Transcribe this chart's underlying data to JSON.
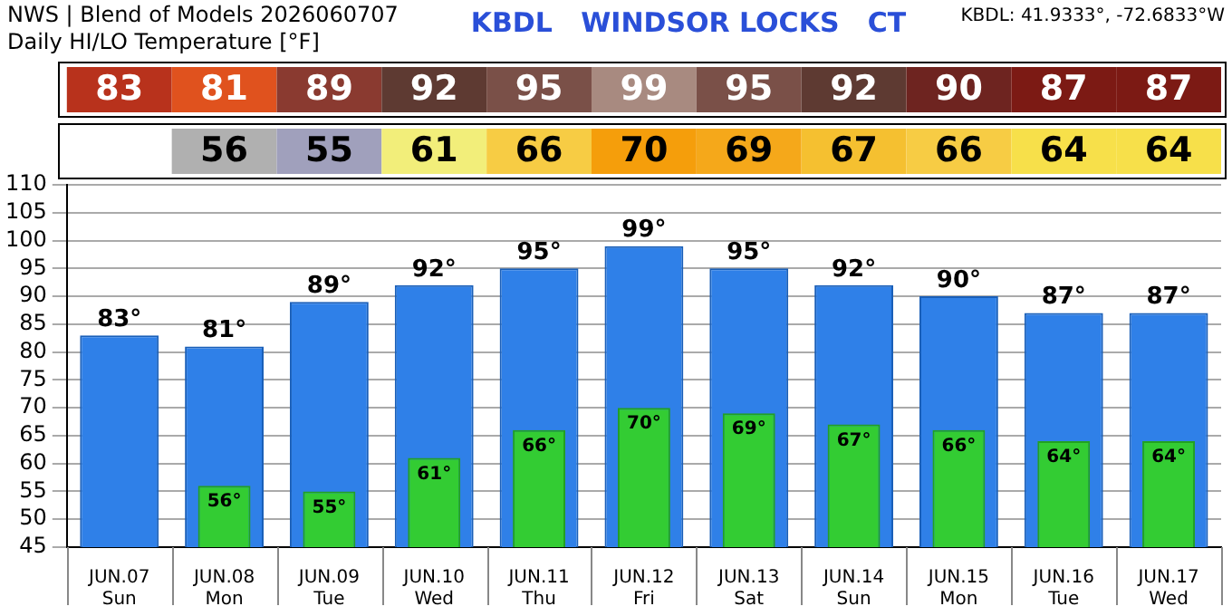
{
  "chart_data": {
    "type": "bar",
    "title": "NWS | Blend of Models 2026060707",
    "subtitle": "Daily HI/LO Temperature [°F]",
    "annotations": [
      "KBDL   WINDSOR LOCKS   CT",
      "KBDL: 41.9333°, -72.6833°W",
      "83",
      "81",
      "89",
      "92",
      "95",
      "99",
      "95",
      "92",
      "90",
      "87",
      "87",
      "56",
      "55",
      "61",
      "66",
      "70",
      "69",
      "67",
      "66",
      "64",
      "64"
    ],
    "categories": [
      "JUN.07\nSun",
      "JUN.08\nMon",
      "JUN.09\nTue",
      "JUN.10\nWed",
      "JUN.11\nThu",
      "JUN.12\nFri",
      "JUN.13\nSat",
      "JUN.14\nSun",
      "JUN.15\nMon",
      "JUN.16\nTue",
      "JUN.17\nWed"
    ],
    "series": [
      {
        "color": "#2f80e8",
        "values": [
          83,
          81,
          89,
          92,
          95,
          99,
          95,
          92,
          90,
          87,
          87
        ],
        "value_labels": [
          "83°",
          "81°",
          "89°",
          "92°",
          "95°",
          "99°",
          "95°",
          "92°",
          "90°",
          "87°",
          "87°"
        ]
      },
      {
        "color": "#33cc33",
        "values": [
          null,
          56,
          55,
          61,
          66,
          70,
          69,
          67,
          66,
          64,
          64
        ],
        "value_labels": [
          null,
          "56°",
          "55°",
          "61°",
          "66°",
          "70°",
          "69°",
          "67°",
          "66°",
          "64°",
          "64°"
        ]
      }
    ],
    "ylim": [
      45,
      110
    ],
    "yticks": [
      45,
      50,
      55,
      60,
      65,
      70,
      75,
      80,
      85,
      90,
      95,
      100,
      105,
      110
    ],
    "grid": "y",
    "legend": false
  }
}
